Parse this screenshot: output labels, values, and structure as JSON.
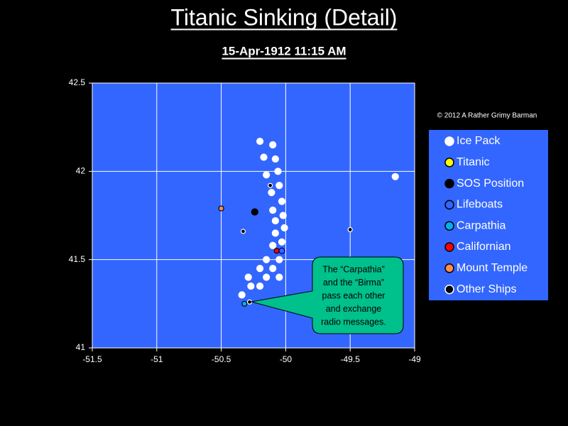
{
  "chart_data": {
    "type": "scatter",
    "title": "Titanic Sinking (Detail)",
    "subtitle": "15-Apr-1912  11:15 AM",
    "credit": "© 2012  A Rather Grimy Barman",
    "annotation": [
      "The “Carpathia”",
      "and the “Birma”",
      "pass each other",
      "and exchange",
      "radio messages."
    ],
    "xlim": [
      -51.5,
      -49
    ],
    "xticks": [
      -51.5,
      -51,
      -50.5,
      -50,
      -49.5,
      -49
    ],
    "ylim": [
      41,
      42.5
    ],
    "yticks": [
      41,
      41.5,
      42,
      42.5
    ],
    "grid": true,
    "plot_color": "#3366ff",
    "legend": "right",
    "series": [
      {
        "name": "Ice Pack",
        "color": "#ffffff",
        "edgecolor": "#ffffff",
        "marker_size": 4.5,
        "x": [
          -50.2,
          -50.1,
          -50.17,
          -50.08,
          -50.06,
          -50.15,
          -49.15,
          -50.05,
          -50.11,
          -50.03,
          -50.1,
          -50.02,
          -50.08,
          -50.01,
          -50.08,
          -50.03,
          -50.1,
          -50.05,
          -50.15,
          -50.2,
          -50.1,
          -50.29,
          -50.15,
          -50.05,
          -50.27,
          -50.2,
          -50.34
        ],
        "y": [
          42.17,
          42.15,
          42.08,
          42.07,
          42.0,
          41.98,
          41.97,
          41.92,
          41.88,
          41.83,
          41.78,
          41.75,
          41.72,
          41.68,
          41.65,
          41.6,
          41.58,
          41.5,
          41.5,
          41.45,
          41.45,
          41.4,
          41.4,
          41.4,
          41.35,
          41.35,
          41.3
        ]
      },
      {
        "name": "Titanic",
        "color": "#ffff00",
        "edgecolor": "#000000",
        "marker_size": 3.5,
        "x": [],
        "y": []
      },
      {
        "name": "SOS Position",
        "color": "#000000",
        "edgecolor": "#000000",
        "marker_size": 4.5,
        "x": [
          -50.24
        ],
        "y": [
          41.77
        ]
      },
      {
        "name": "Lifeboats",
        "color": "#3366ff",
        "edgecolor": "#000080",
        "marker_size": 4,
        "x": [
          -50.03
        ],
        "y": [
          41.55
        ]
      },
      {
        "name": "Carpathia",
        "color": "#00b0f0",
        "edgecolor": "#000000",
        "marker_size": 3.5,
        "x": [
          -50.32
        ],
        "y": [
          41.25
        ]
      },
      {
        "name": "Californian",
        "color": "#ff0000",
        "edgecolor": "#000000",
        "marker_size": 3.5,
        "x": [
          -50.07
        ],
        "y": [
          41.55
        ]
      },
      {
        "name": "Mount Temple",
        "color": "#ff8c50",
        "edgecolor": "#000000",
        "marker_size": 3.5,
        "x": [
          -50.5
        ],
        "y": [
          41.79
        ]
      },
      {
        "name": "Other Ships",
        "color": "#000000",
        "edgecolor": "#ffffff",
        "marker_size": 3,
        "x": [
          -50.12,
          -50.33,
          -49.5,
          -50.28
        ],
        "y": [
          41.92,
          41.66,
          41.67,
          41.26
        ]
      }
    ]
  }
}
